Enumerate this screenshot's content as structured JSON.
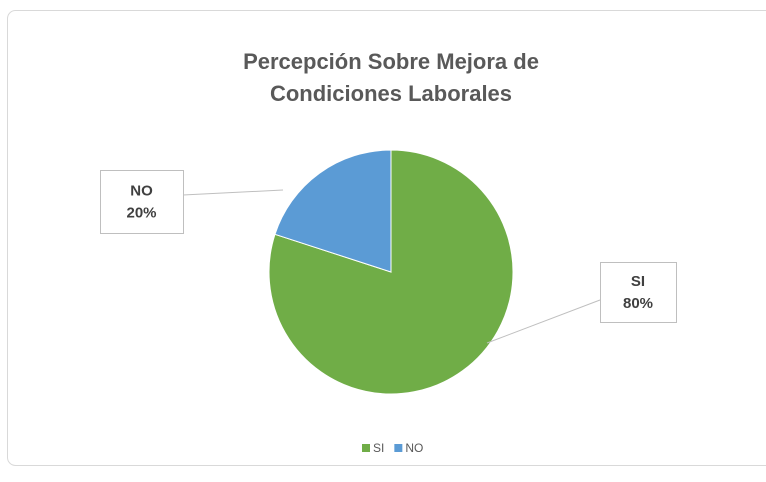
{
  "chart_data": {
    "type": "pie",
    "title": "Percepción Sobre Mejora de Condiciones Laborales",
    "categories": [
      "SI",
      "NO"
    ],
    "values": [
      80,
      20
    ],
    "value_labels": [
      "80%",
      "20%"
    ],
    "colors": [
      "#70ad47",
      "#5b9bd5"
    ],
    "legend": "bottom"
  }
}
